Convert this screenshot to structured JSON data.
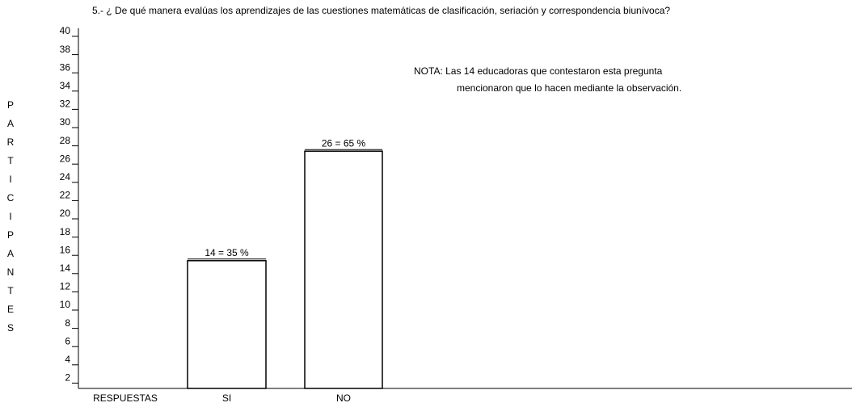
{
  "chart_data": {
    "type": "bar",
    "title": "5.-  ¿ De qué manera evalúas los aprendizajes de las cuestiones matemáticas de clasificación, seriación y correspondencia biunívoca?",
    "ylabel": "PARTICIPANTES",
    "xlabel": "RESPUESTAS",
    "annotations": [
      "NOTA:  Las 14  educadoras que  contestaron  esta pregunta",
      "mencionaron  que lo hacen mediante la observación."
    ],
    "categories": [
      "SI",
      "NO"
    ],
    "values": [
      14,
      26
    ],
    "value_labels": [
      "14 = 35 %",
      "26 = 65 %"
    ],
    "color": "#ffffff",
    "ylim": [
      0,
      40
    ],
    "yticks": [
      2,
      4,
      6,
      8,
      10,
      12,
      14,
      16,
      18,
      20,
      22,
      24,
      26,
      28,
      30,
      32,
      34,
      36,
      38,
      40
    ],
    "grid": false
  }
}
